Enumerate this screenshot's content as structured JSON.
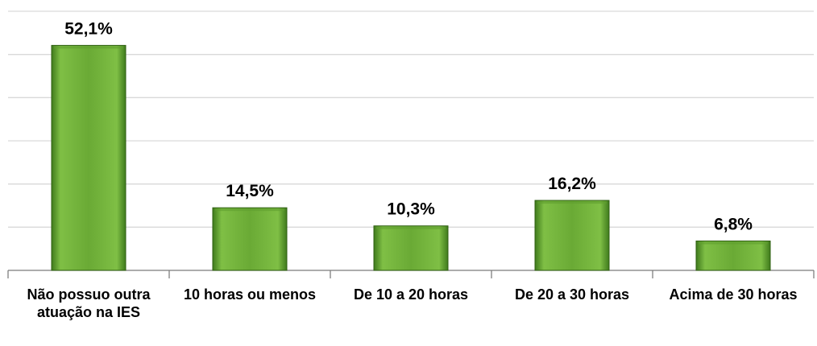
{
  "chart_data": {
    "type": "bar",
    "categories": [
      "Não possuo outra atuação na IES",
      "10 horas ou menos",
      "De 10 a 20 horas",
      "De 20 a 30 horas",
      "Acima de 30 horas"
    ],
    "values": [
      52.1,
      14.5,
      10.3,
      16.2,
      6.8
    ],
    "value_labels": [
      "52,1%",
      "14,5%",
      "10,3%",
      "16,2%",
      "6,8%"
    ],
    "color": "#5f9f2f",
    "ylim": [
      0,
      60
    ],
    "yticks": [
      0,
      10,
      20,
      30,
      40,
      50,
      60
    ],
    "grid": true
  }
}
